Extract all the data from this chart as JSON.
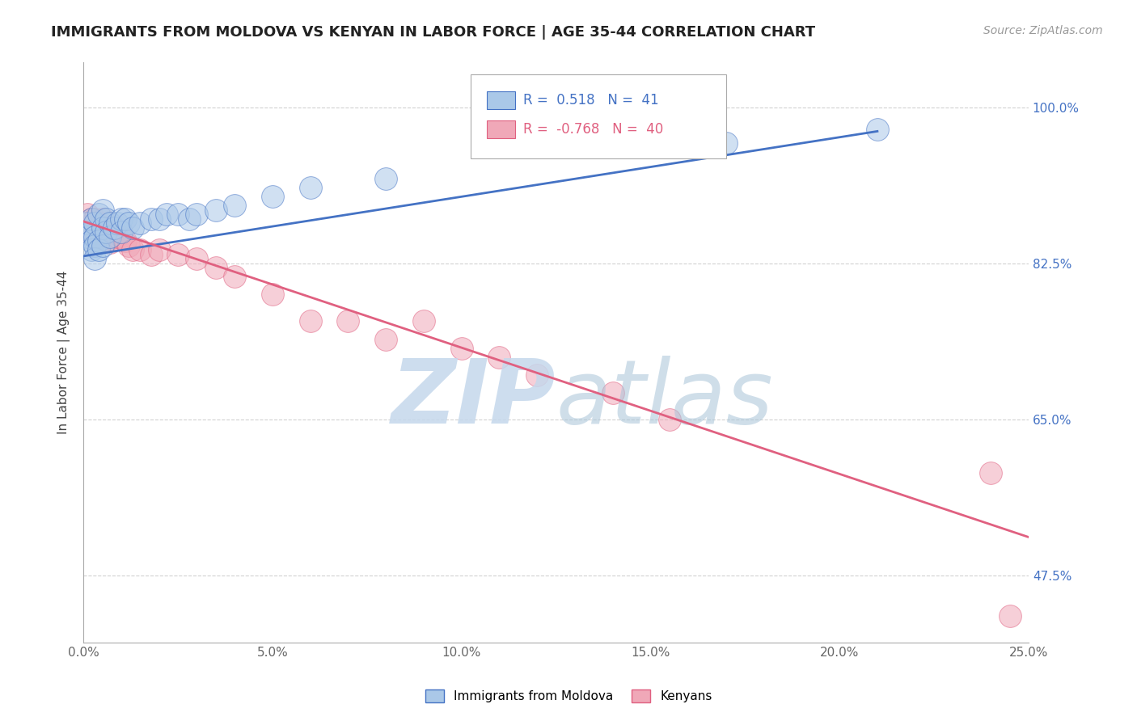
{
  "title": "IMMIGRANTS FROM MOLDOVA VS KENYAN IN LABOR FORCE | AGE 35-44 CORRELATION CHART",
  "source": "Source: ZipAtlas.com",
  "ylabel": "In Labor Force | Age 35-44",
  "xlim": [
    0.0,
    0.25
  ],
  "ylim": [
    0.4,
    1.05
  ],
  "xticks": [
    0.0,
    0.05,
    0.1,
    0.15,
    0.2,
    0.25
  ],
  "xtick_labels": [
    "0.0%",
    "5.0%",
    "10.0%",
    "15.0%",
    "20.0%",
    "25.0%"
  ],
  "ytick_labels": [
    "47.5%",
    "65.0%",
    "82.5%",
    "100.0%"
  ],
  "ytick_values": [
    0.475,
    0.65,
    0.825,
    1.0
  ],
  "R_moldova": 0.518,
  "N_moldova": 41,
  "R_kenya": -0.768,
  "N_kenya": 40,
  "moldova_color": "#aac8e8",
  "kenya_color": "#f0a8b8",
  "moldova_line_color": "#4472c4",
  "kenya_line_color": "#e06080",
  "background_color": "#ffffff",
  "grid_color": "#cccccc",
  "moldova_scatter_x": [
    0.001,
    0.001,
    0.002,
    0.002,
    0.002,
    0.002,
    0.003,
    0.003,
    0.003,
    0.003,
    0.004,
    0.004,
    0.004,
    0.005,
    0.005,
    0.005,
    0.006,
    0.006,
    0.007,
    0.007,
    0.008,
    0.009,
    0.01,
    0.01,
    0.011,
    0.012,
    0.013,
    0.015,
    0.018,
    0.02,
    0.022,
    0.025,
    0.028,
    0.03,
    0.035,
    0.04,
    0.05,
    0.06,
    0.08,
    0.17,
    0.21
  ],
  "moldova_scatter_y": [
    0.855,
    0.87,
    0.86,
    0.875,
    0.85,
    0.84,
    0.87,
    0.855,
    0.845,
    0.83,
    0.88,
    0.85,
    0.84,
    0.885,
    0.865,
    0.845,
    0.875,
    0.86,
    0.87,
    0.855,
    0.865,
    0.87,
    0.875,
    0.86,
    0.875,
    0.87,
    0.865,
    0.87,
    0.875,
    0.875,
    0.88,
    0.88,
    0.875,
    0.88,
    0.885,
    0.89,
    0.9,
    0.91,
    0.92,
    0.96,
    0.975
  ],
  "kenya_scatter_x": [
    0.001,
    0.001,
    0.002,
    0.002,
    0.003,
    0.003,
    0.003,
    0.004,
    0.004,
    0.005,
    0.005,
    0.006,
    0.006,
    0.007,
    0.007,
    0.008,
    0.009,
    0.01,
    0.011,
    0.012,
    0.013,
    0.015,
    0.018,
    0.02,
    0.025,
    0.03,
    0.035,
    0.04,
    0.05,
    0.06,
    0.07,
    0.08,
    0.09,
    0.1,
    0.11,
    0.12,
    0.14,
    0.155,
    0.24,
    0.245
  ],
  "kenya_scatter_y": [
    0.88,
    0.87,
    0.875,
    0.86,
    0.875,
    0.86,
    0.85,
    0.87,
    0.855,
    0.875,
    0.86,
    0.865,
    0.85,
    0.86,
    0.848,
    0.852,
    0.855,
    0.855,
    0.85,
    0.845,
    0.84,
    0.84,
    0.835,
    0.84,
    0.835,
    0.83,
    0.82,
    0.81,
    0.79,
    0.76,
    0.76,
    0.74,
    0.76,
    0.73,
    0.72,
    0.7,
    0.68,
    0.65,
    0.59,
    0.43
  ],
  "moldova_trendline_x": [
    0.0,
    0.21
  ],
  "moldova_trendline_y": [
    0.833,
    0.973
  ],
  "kenya_trendline_x": [
    0.0,
    0.25
  ],
  "kenya_trendline_y": [
    0.872,
    0.518
  ]
}
